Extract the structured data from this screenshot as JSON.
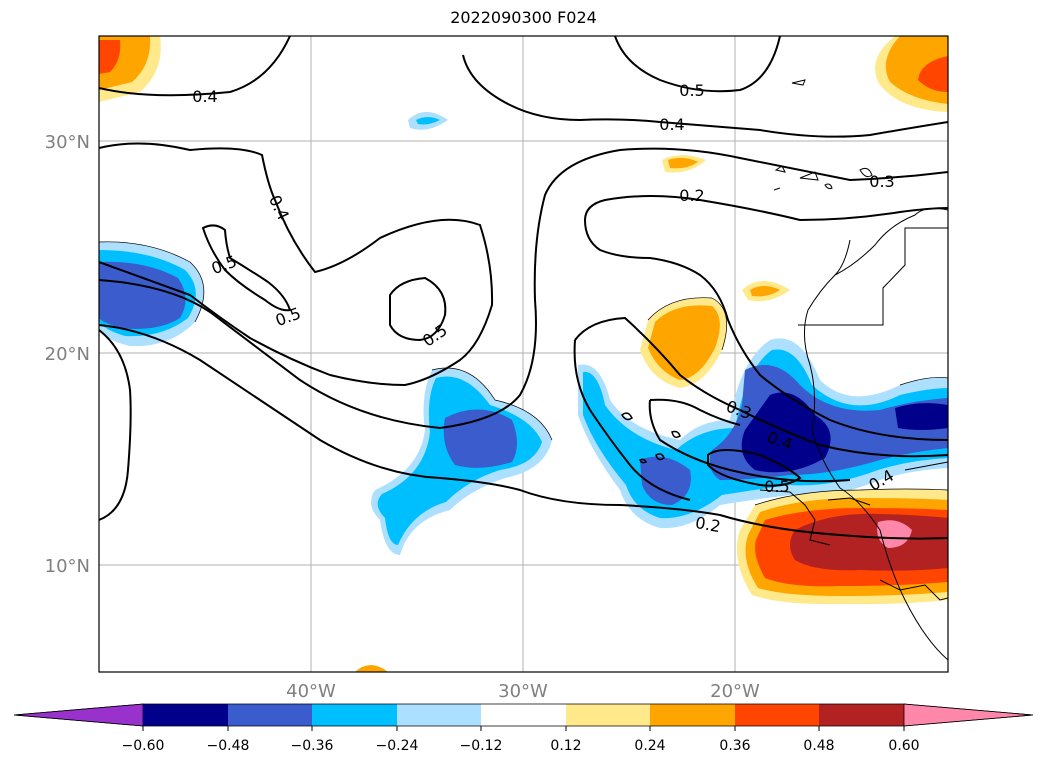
{
  "title": "2022090300 F024",
  "map": {
    "lat_labels": [
      "30°N",
      "20°N",
      "10°N"
    ],
    "lon_labels": [
      "40°W",
      "30°W",
      "20°W"
    ],
    "gridlines": true,
    "contour_labels": [
      "0.4",
      "0.5",
      "0.4",
      "0.4",
      "0.3",
      "0.2",
      "0.5",
      "0.5",
      "0.5",
      "0.3",
      "0.4",
      "0.5",
      "0.4",
      "0.2"
    ]
  },
  "colorbar": {
    "ticks": [
      "−0.60",
      "−0.48",
      "−0.36",
      "−0.24",
      "−0.12",
      "0.12",
      "0.24",
      "0.36",
      "0.48",
      "0.60"
    ],
    "colors": [
      "#9932cc",
      "#00008b",
      "#3a5ccc",
      "#00bfff",
      "#addfff",
      "#ffffff",
      "#ffe98a",
      "#ffa500",
      "#ff4500",
      "#b22222",
      "#ff88aa"
    ],
    "extend": "both"
  }
}
